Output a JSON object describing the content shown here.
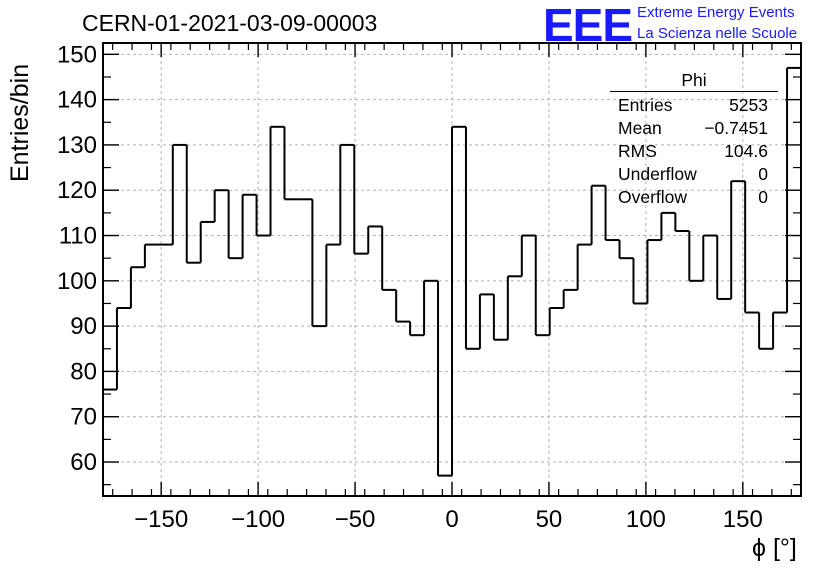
{
  "header": {
    "run_title": "CERN-01-2021-03-09-00003",
    "logo_text": "EEE",
    "logo_line1": "Extreme Energy Events",
    "logo_line2": "La Scienza nelle Scuole"
  },
  "stats_box": {
    "name": "Phi",
    "rows": [
      {
        "label": "Entries",
        "value": "5253"
      },
      {
        "label": "Mean",
        "value": "−0.7451"
      },
      {
        "label": "RMS",
        "value": "104.6"
      },
      {
        "label": "Underflow",
        "value": "0"
      },
      {
        "label": "Overflow",
        "value": "0"
      }
    ]
  },
  "colors": {
    "logo": "#1a1aff",
    "histogram_line": "#000000",
    "grid": "#b4b4b4"
  },
  "chart_data": {
    "type": "histogram",
    "title": "CERN-01-2021-03-09-00003",
    "xlabel": "ϕ [°]",
    "ylabel": "Entries/bin",
    "xlim": [
      -180,
      180
    ],
    "ylim": [
      52.5,
      152.5
    ],
    "bin_width": 7.2,
    "bin_edges_start": -180,
    "x_ticks": [
      -150,
      -100,
      -50,
      0,
      50,
      100,
      150
    ],
    "x_tick_labels": [
      "−150",
      "−100",
      "−50",
      "0",
      "50",
      "100",
      "150"
    ],
    "y_ticks": [
      60,
      70,
      80,
      90,
      100,
      110,
      120,
      130,
      140,
      150
    ],
    "grid": true,
    "legend": "stats box top-right",
    "values": [
      76,
      94,
      103,
      108,
      108,
      130,
      104,
      113,
      120,
      105,
      119,
      110,
      134,
      118,
      118,
      90,
      108,
      130,
      106,
      112,
      98,
      91,
      88,
      100,
      57,
      134,
      85,
      97,
      87,
      101,
      110,
      88,
      94,
      98,
      108,
      121,
      109,
      105,
      95,
      109,
      115,
      111,
      100,
      110,
      96,
      122,
      93,
      85,
      93,
      147
    ]
  }
}
